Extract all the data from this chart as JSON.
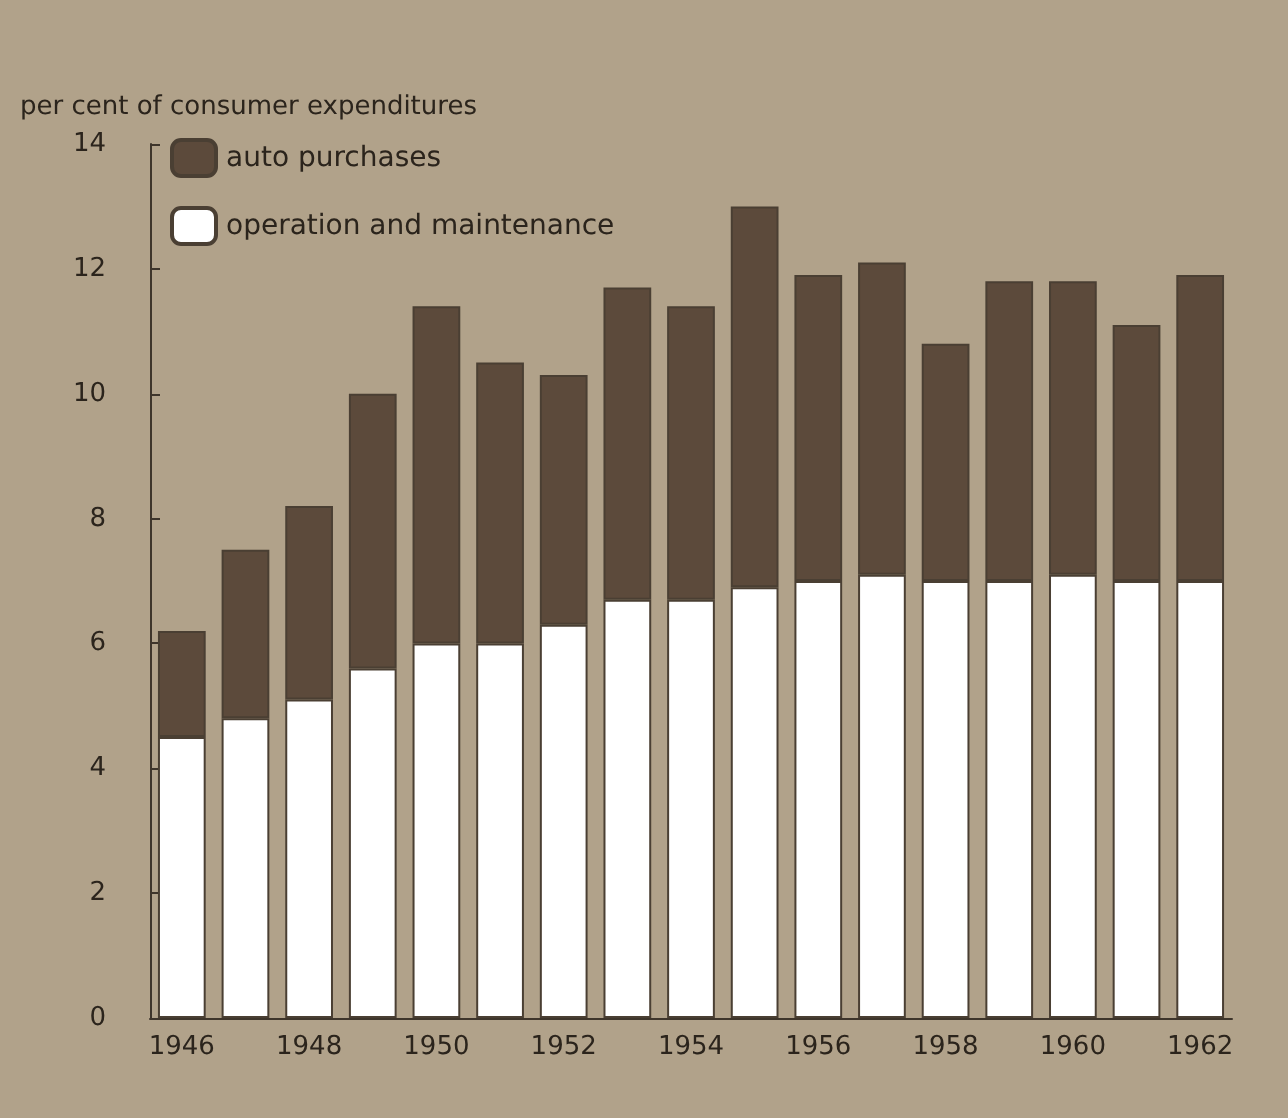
{
  "chart_data": {
    "type": "bar",
    "stacked": true,
    "ylabel": "per cent of consumer expenditures",
    "categories": [
      "1946",
      null,
      "1948",
      null,
      "1950",
      null,
      "1952",
      null,
      "1954",
      null,
      "1956",
      null,
      "1958",
      null,
      "1960",
      null,
      "1962"
    ],
    "series": [
      {
        "name": "operation and maintenance",
        "color": "#ffffff",
        "values": [
          4.5,
          4.8,
          5.1,
          5.6,
          6.0,
          6.0,
          6.3,
          6.7,
          6.7,
          6.9,
          7.0,
          7.1,
          7.0,
          7.0,
          7.1,
          7.0,
          7.0
        ]
      },
      {
        "name": "auto purchases",
        "color": "#5c4a3b",
        "values": [
          1.7,
          2.7,
          3.1,
          4.4,
          5.4,
          4.5,
          4.0,
          5.0,
          4.7,
          6.1,
          4.9,
          5.0,
          3.8,
          4.8,
          4.7,
          4.1,
          4.9
        ]
      }
    ],
    "ylim": [
      0,
      14
    ],
    "yticks": [
      0,
      2,
      4,
      6,
      8,
      10,
      12,
      14
    ],
    "grid": false,
    "legend": "top left"
  }
}
